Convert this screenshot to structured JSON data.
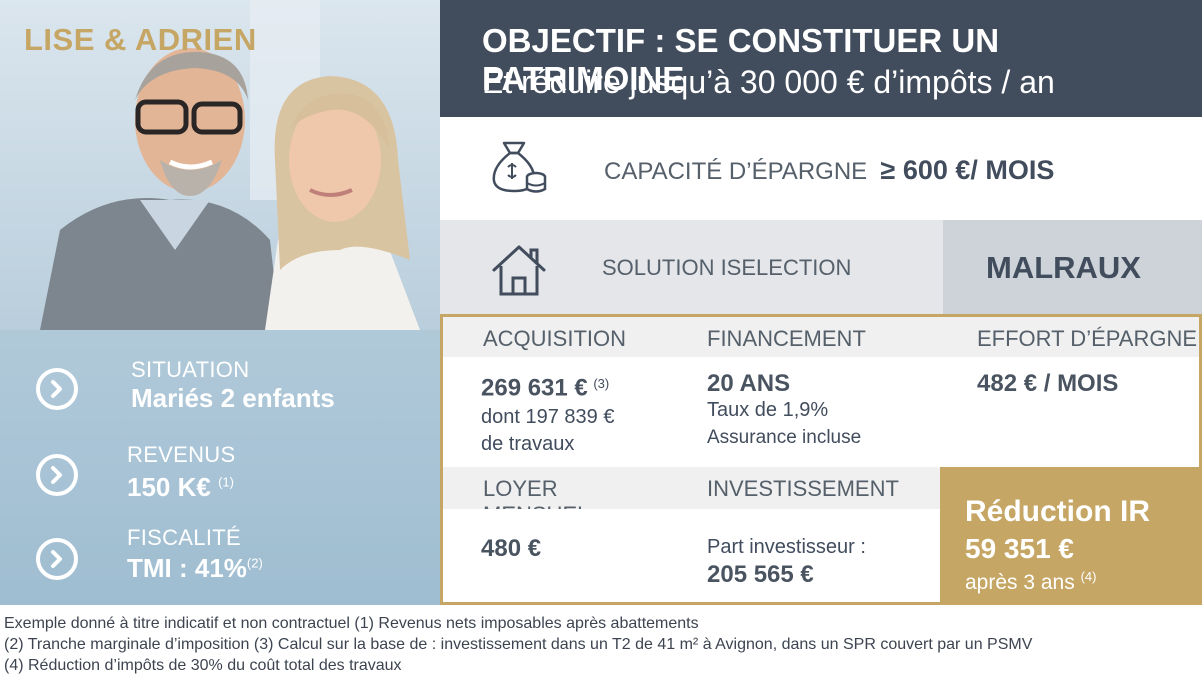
{
  "left_panel": {
    "couple_name": "LISE & ADRIEN",
    "situation": {
      "label": "SITUATION",
      "value": "Mariés 2 enfants"
    },
    "revenus": {
      "label": "REVENUS",
      "value": "150 K€",
      "note": "(1)"
    },
    "fiscalite": {
      "label": "FISCALITÉ",
      "value": "TMI : 41%",
      "note": "(2)"
    }
  },
  "header": {
    "title": "OBJECTIF :  SE CONSTITUER UN PATRIMOINE",
    "subtitle": "Et réduire jusqu’à 30 000 € d’impôts / an"
  },
  "savings": {
    "label": "CAPACITÉ D’ÉPARGNE",
    "value": "≥ 600 €/ MOIS"
  },
  "solution": {
    "label": "SOLUTION ISELECTION",
    "name": "MALRAUX"
  },
  "grid": {
    "acquisition": {
      "header": "ACQUISITION",
      "value": "269 631 €",
      "note": "(3)",
      "line1": "dont 197 839 €",
      "line2": "de travaux"
    },
    "financement": {
      "header": "FINANCEMENT",
      "value": "20 ANS",
      "line1": "Taux de 1,9%",
      "line2": "Assurance incluse"
    },
    "effort": {
      "header": "EFFORT D’ÉPARGNE",
      "value": "482 € / MOIS"
    },
    "loyer": {
      "header": "LOYER MENSUEL",
      "value": "480 €"
    },
    "investissement": {
      "header": "INVESTISSEMENT",
      "line1": "Part investisseur :",
      "value": "205 565 €"
    },
    "reduction": {
      "title": "Réduction IR",
      "amount": "59 351 €",
      "after": "après 3 ans",
      "note": "(4)"
    }
  },
  "footnotes": [
    "Exemple donné à titre indicatif et non contractuel (1) Revenus nets imposables après abattements",
    "(2) Tranche marginale d’imposition (3) Calcul sur la base de : investissement dans un T2 de 41 m² à Avignon, dans un SPR couvert par un PSMV",
    "(4) Réduction d’impôts de 30% du coût total des travaux"
  ],
  "icons": [
    "money-bag-icon",
    "house-icon",
    "chevron-right-icon"
  ],
  "colors": {
    "dark": "#414c5d",
    "gold": "#c6a664",
    "blue": "#9fbdd1"
  }
}
